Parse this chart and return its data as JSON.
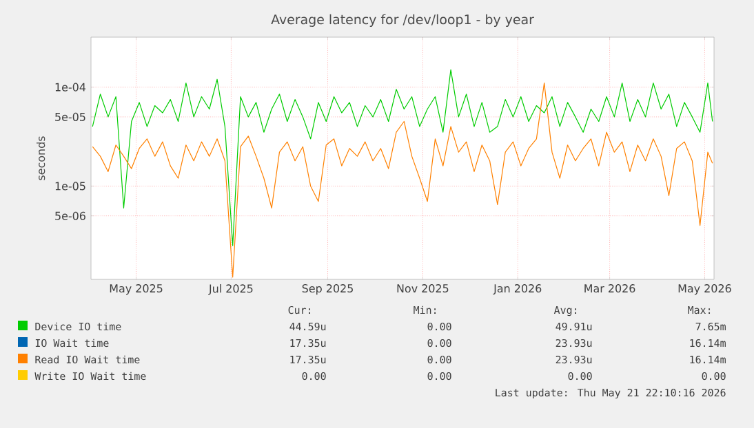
{
  "chart_data": {
    "type": "line",
    "title": "Average latency for /dev/loop1 - by year",
    "ylabel": "seconds",
    "log": "y",
    "grid": true,
    "legend": "bottom",
    "marker": "none",
    "line_style": "solid",
    "xlim": [
      "2025-04-17",
      "2026-05-22"
    ],
    "ylim": [
      1.14e-06,
      0.00032
    ],
    "xticks": [
      {
        "value": "2025-05-16",
        "label": "May 2025"
      },
      {
        "value": "2025-07-16",
        "label": "Jul 2025"
      },
      {
        "value": "2025-09-16",
        "label": "Sep 2025"
      },
      {
        "value": "2025-11-16",
        "label": "Nov 2025"
      },
      {
        "value": "2026-01-16",
        "label": "Jan 2026"
      },
      {
        "value": "2026-03-16",
        "label": "Mar 2026"
      },
      {
        "value": "2026-05-16",
        "label": "May 2026"
      }
    ],
    "yticks": [
      {
        "value": 5e-06,
        "label": "5e-06"
      },
      {
        "value": 1e-05,
        "label": "1e-05"
      },
      {
        "value": 5e-05,
        "label": "5e-05"
      },
      {
        "value": 0.0001,
        "label": "1e-04"
      }
    ],
    "x": [
      "2025-04-18",
      "2025-04-23",
      "2025-04-28",
      "2025-05-03",
      "2025-05-08",
      "2025-05-13",
      "2025-05-18",
      "2025-05-23",
      "2025-05-28",
      "2025-06-02",
      "2025-06-07",
      "2025-06-12",
      "2025-06-17",
      "2025-06-22",
      "2025-06-27",
      "2025-07-02",
      "2025-07-07",
      "2025-07-12",
      "2025-07-17",
      "2025-07-22",
      "2025-07-27",
      "2025-08-01",
      "2025-08-06",
      "2025-08-11",
      "2025-08-16",
      "2025-08-21",
      "2025-08-26",
      "2025-08-31",
      "2025-09-05",
      "2025-09-10",
      "2025-09-15",
      "2025-09-20",
      "2025-09-25",
      "2025-09-30",
      "2025-10-05",
      "2025-10-10",
      "2025-10-15",
      "2025-10-20",
      "2025-10-25",
      "2025-10-30",
      "2025-11-04",
      "2025-11-09",
      "2025-11-14",
      "2025-11-19",
      "2025-11-24",
      "2025-11-29",
      "2025-12-04",
      "2025-12-09",
      "2025-12-14",
      "2025-12-19",
      "2025-12-24",
      "2025-12-29",
      "2026-01-03",
      "2026-01-08",
      "2026-01-13",
      "2026-01-18",
      "2026-01-23",
      "2026-01-28",
      "2026-02-02",
      "2026-02-07",
      "2026-02-12",
      "2026-02-17",
      "2026-02-22",
      "2026-02-27",
      "2026-03-04",
      "2026-03-09",
      "2026-03-14",
      "2026-03-19",
      "2026-03-24",
      "2026-03-29",
      "2026-04-03",
      "2026-04-08",
      "2026-04-13",
      "2026-04-18",
      "2026-04-23",
      "2026-04-28",
      "2026-05-03",
      "2026-05-08",
      "2026-05-13",
      "2026-05-18",
      "2026-05-21"
    ],
    "series": [
      {
        "name": "Device IO time",
        "color": "#00cc00",
        "values": [
          4e-05,
          8.5e-05,
          5e-05,
          8e-05,
          6e-06,
          4.5e-05,
          7e-05,
          4e-05,
          6.5e-05,
          5.5e-05,
          7.5e-05,
          4.5e-05,
          0.00011,
          5e-05,
          8e-05,
          6e-05,
          0.00012,
          4e-05,
          2.5e-06,
          8e-05,
          5e-05,
          7e-05,
          3.5e-05,
          6e-05,
          8.5e-05,
          4.5e-05,
          7.5e-05,
          5e-05,
          3e-05,
          7e-05,
          4.5e-05,
          8e-05,
          5.5e-05,
          7e-05,
          4e-05,
          6.5e-05,
          5e-05,
          7.5e-05,
          4.5e-05,
          9.5e-05,
          6e-05,
          8e-05,
          4e-05,
          6e-05,
          8e-05,
          3.5e-05,
          0.00015,
          5e-05,
          8.5e-05,
          4e-05,
          7e-05,
          3.5e-05,
          4e-05,
          7.5e-05,
          5e-05,
          8e-05,
          4.5e-05,
          6.5e-05,
          5.5e-05,
          8e-05,
          4e-05,
          7e-05,
          5e-05,
          3.5e-05,
          6e-05,
          4.5e-05,
          8e-05,
          5e-05,
          0.00011,
          4.5e-05,
          7.5e-05,
          5e-05,
          0.00011,
          6e-05,
          8.5e-05,
          4e-05,
          7e-05,
          5e-05,
          3.5e-05,
          0.00011,
          4.5e-05
        ]
      },
      {
        "name": "IO Wait time",
        "color": "#0066b3",
        "values": [
          null,
          null,
          null,
          null,
          null,
          null,
          null,
          null,
          null,
          null,
          null,
          null,
          null,
          null,
          null,
          null,
          null,
          null,
          null,
          null,
          null,
          null,
          null,
          null,
          null,
          null,
          null,
          null,
          null,
          null,
          null,
          null,
          null,
          null,
          null,
          null,
          null,
          null,
          null,
          null,
          null,
          null,
          null,
          null,
          null,
          null,
          null,
          null,
          null,
          null,
          null,
          null,
          null,
          null,
          null,
          null,
          null,
          null,
          null,
          null,
          null,
          null,
          null,
          null,
          null,
          null,
          null,
          null,
          null,
          null,
          null,
          null,
          null,
          null,
          null,
          null,
          null,
          null,
          null,
          null,
          null
        ]
      },
      {
        "name": "Read IO Wait time",
        "color": "#ff8000",
        "values": [
          2.5e-05,
          2e-05,
          1.4e-05,
          2.6e-05,
          2e-05,
          1.5e-05,
          2.4e-05,
          3e-05,
          2e-05,
          2.8e-05,
          1.6e-05,
          1.2e-05,
          2.6e-05,
          1.8e-05,
          2.8e-05,
          2e-05,
          3e-05,
          1.8e-05,
          1.2e-06,
          2.5e-05,
          3.2e-05,
          2e-05,
          1.2e-05,
          6e-06,
          2.2e-05,
          2.8e-05,
          1.8e-05,
          2.5e-05,
          1e-05,
          7e-06,
          2.6e-05,
          3e-05,
          1.6e-05,
          2.4e-05,
          2e-05,
          2.8e-05,
          1.8e-05,
          2.4e-05,
          1.5e-05,
          3.5e-05,
          4.5e-05,
          2e-05,
          1.2e-05,
          7e-06,
          3e-05,
          1.6e-05,
          4e-05,
          2.2e-05,
          2.8e-05,
          1.4e-05,
          2.6e-05,
          1.8e-05,
          6.5e-06,
          2.2e-05,
          2.8e-05,
          1.6e-05,
          2.4e-05,
          3e-05,
          0.00011,
          2.2e-05,
          1.2e-05,
          2.6e-05,
          1.8e-05,
          2.4e-05,
          3e-05,
          1.6e-05,
          3.5e-05,
          2.2e-05,
          2.8e-05,
          1.4e-05,
          2.6e-05,
          1.8e-05,
          3e-05,
          2e-05,
          8e-06,
          2.4e-05,
          2.8e-05,
          1.8e-05,
          4e-06,
          2.2e-05,
          1.7e-05
        ]
      },
      {
        "name": "Write IO Wait time",
        "color": "#ffcc00",
        "values": [
          null,
          null,
          null,
          null,
          null,
          null,
          null,
          null,
          null,
          null,
          null,
          null,
          null,
          null,
          null,
          null,
          null,
          null,
          null,
          null,
          null,
          null,
          null,
          null,
          null,
          null,
          null,
          null,
          null,
          null,
          null,
          null,
          null,
          null,
          null,
          null,
          null,
          null,
          null,
          null,
          null,
          null,
          null,
          null,
          null,
          null,
          null,
          null,
          null,
          null,
          null,
          null,
          null,
          null,
          null,
          null,
          null,
          null,
          null,
          null,
          null,
          null,
          null,
          null,
          null,
          null,
          null,
          null,
          null,
          null,
          null,
          null,
          null,
          null,
          null,
          null,
          null,
          null,
          null,
          null,
          null
        ]
      }
    ],
    "annotations": [
      "Cur:",
      "Min:",
      "Avg:",
      "Max:",
      "44.59u",
      "0.00",
      "49.91u",
      "7.65m",
      "17.35u",
      "0.00",
      "23.93u",
      "16.14m",
      "17.35u",
      "0.00",
      "23.93u",
      "16.14m",
      "0.00",
      "0.00",
      "0.00",
      "0.00",
      "Last update: Thu May 21 22:10:16 2026"
    ]
  }
}
